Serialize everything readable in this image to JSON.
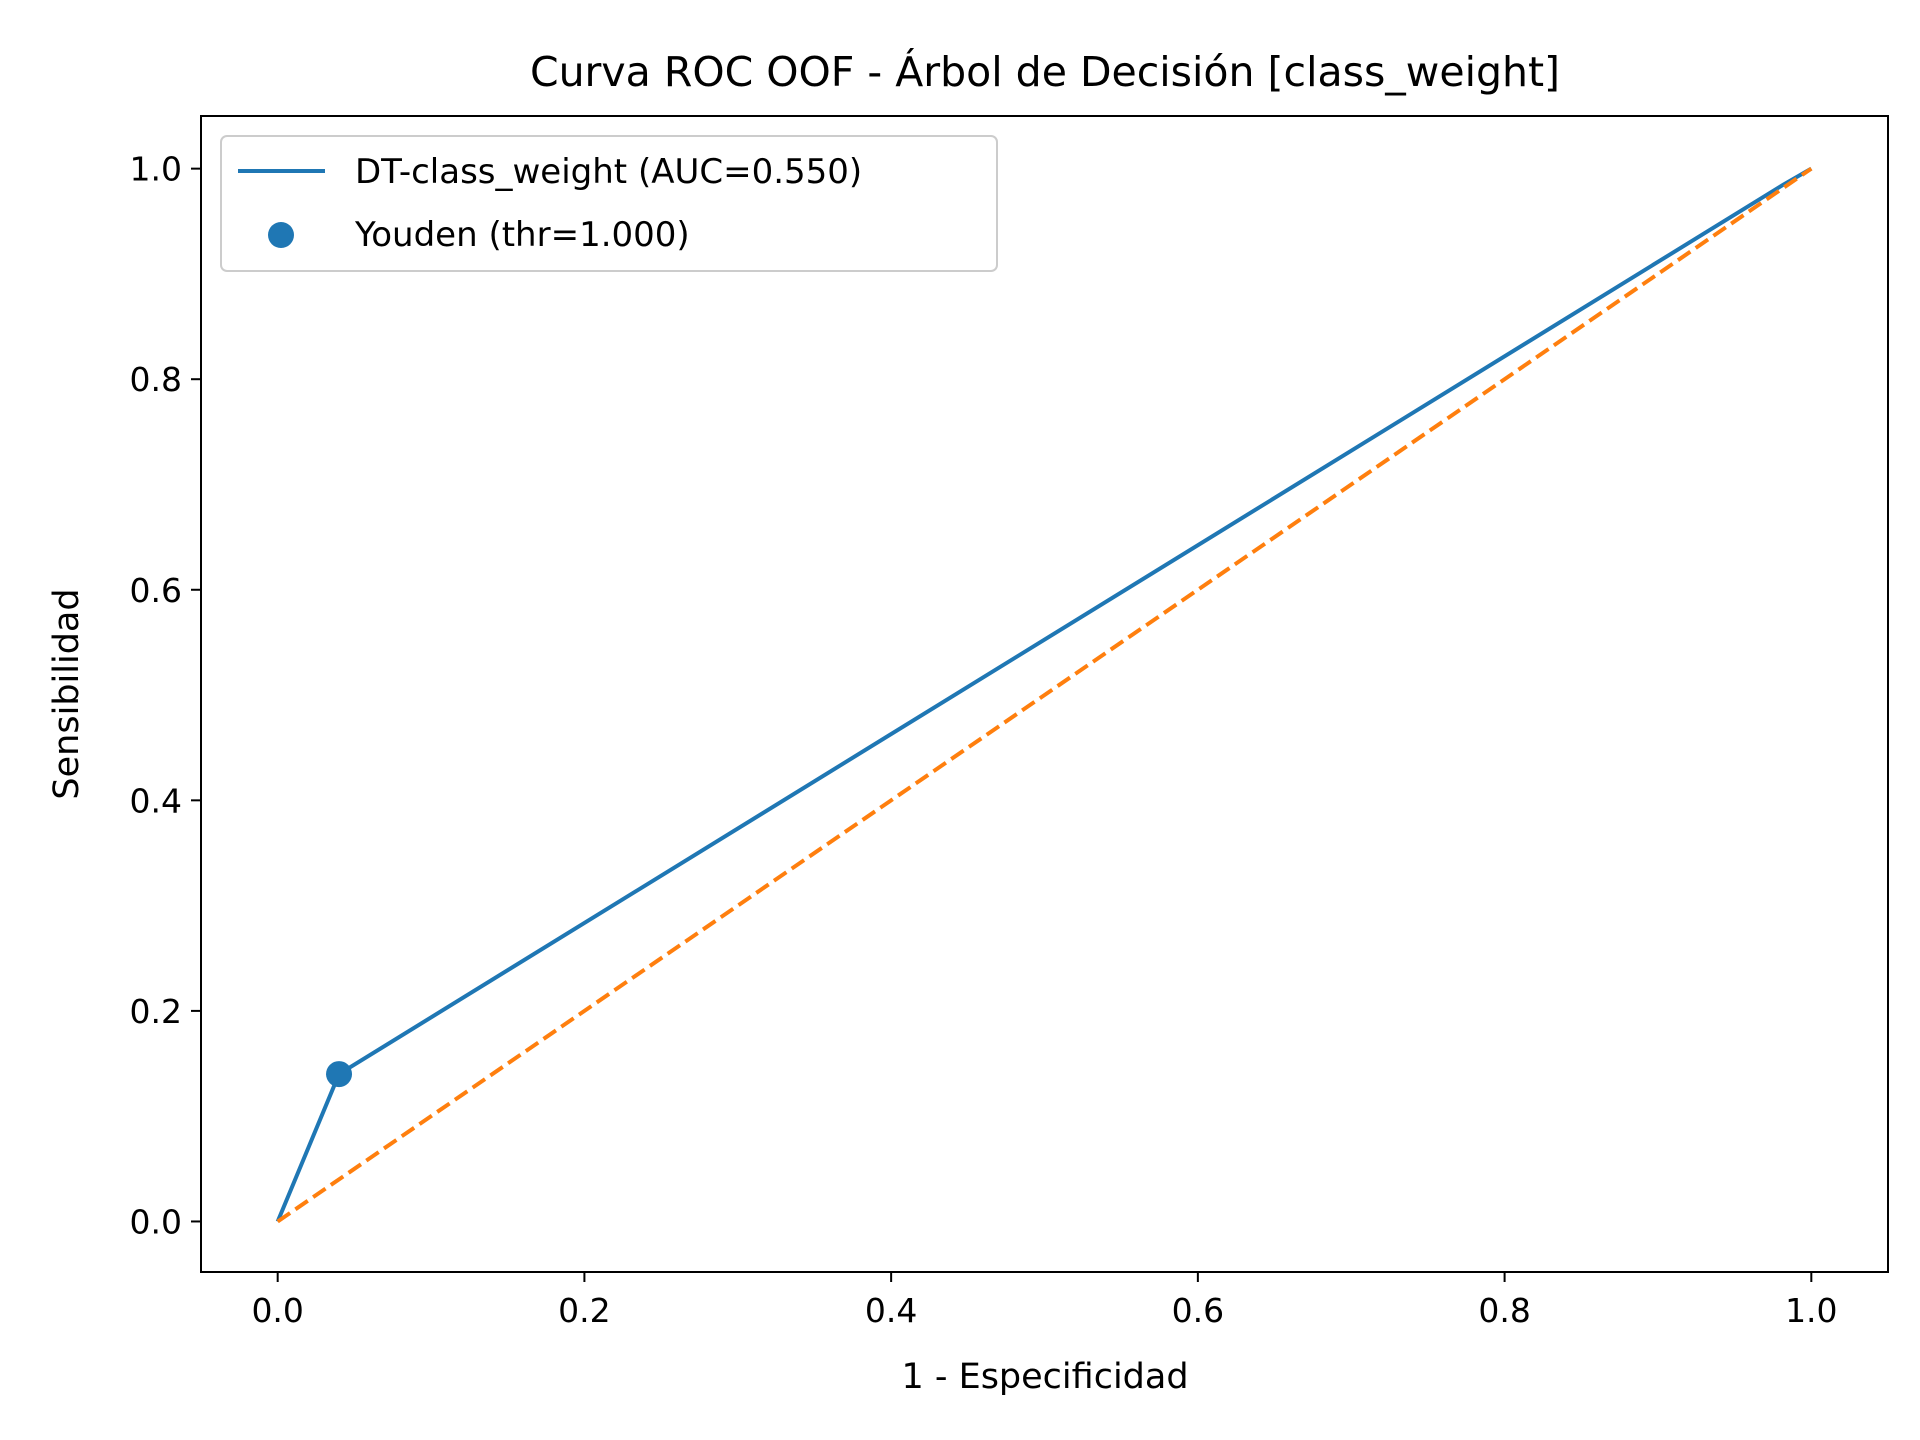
{
  "chart_data": {
    "type": "line",
    "title": "Curva ROC OOF - Árbol de Decisión [class_weight]",
    "xlabel": "1 - Especificidad",
    "ylabel": "Sensibilidad",
    "xlim": [
      -0.05,
      1.05
    ],
    "ylim": [
      -0.048,
      1.05
    ],
    "xticks": [
      0.0,
      0.2,
      0.4,
      0.6,
      0.8,
      1.0
    ],
    "yticks": [
      0.0,
      0.2,
      0.4,
      0.6,
      0.8,
      1.0
    ],
    "xtick_labels": [
      "0.0",
      "0.2",
      "0.4",
      "0.6",
      "0.8",
      "1.0"
    ],
    "ytick_labels": [
      "0.0",
      "0.2",
      "0.4",
      "0.6",
      "0.8",
      "1.0"
    ],
    "grid": false,
    "legend_position": "top-left",
    "series": [
      {
        "name": "DT-class_weight (AUC=0.550)",
        "kind": "line",
        "color": "#1f77b4",
        "x": [
          0.0,
          0.04,
          0.982,
          1.0
        ],
        "y": [
          0.0,
          0.14,
          0.985,
          1.0
        ]
      },
      {
        "name": "",
        "kind": "line",
        "style": "dashed",
        "color": "#ff7f0e",
        "x": [
          0.0,
          1.0
        ],
        "y": [
          0.0,
          1.0
        ]
      },
      {
        "name": "Youden (thr=1.000)",
        "kind": "scatter",
        "color": "#1f77b4",
        "x": [
          0.04
        ],
        "y": [
          0.14
        ]
      }
    ]
  }
}
